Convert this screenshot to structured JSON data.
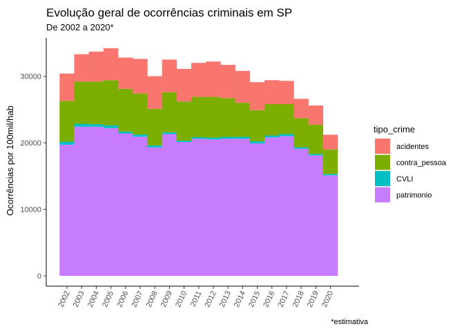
{
  "chart_data": {
    "type": "bar",
    "stacked": true,
    "title": "Evolução geral de ocorrências criminais em SP",
    "subtitle": "De 2002 a 2020*",
    "xlabel": "",
    "ylabel": "Ocorrências por 100mil/hab",
    "caption": "*estimativa",
    "ylim": [
      0,
      35000
    ],
    "yticks": [
      0,
      10000,
      20000,
      30000
    ],
    "ytick_labels": [
      "0",
      "10000",
      "20000",
      "30000"
    ],
    "grid": false,
    "legend": {
      "title": "tipo_crime",
      "position": "right"
    },
    "categories": [
      "2002",
      "2003",
      "2004",
      "2005",
      "2006",
      "2007",
      "2008",
      "2009",
      "2010",
      "2011",
      "2012",
      "2013",
      "2014",
      "2015",
      "2016",
      "2017",
      "2018",
      "2019",
      "2020"
    ],
    "series": [
      {
        "name": "patrimonio",
        "color": "#C77CFF",
        "values": [
          19700,
          22400,
          22400,
          22200,
          21400,
          20900,
          19300,
          21300,
          20100,
          20600,
          20500,
          20600,
          20600,
          19900,
          20800,
          21000,
          19100,
          18100,
          15100
        ]
      },
      {
        "name": "CVLI",
        "color": "#00BFC4",
        "values": [
          450,
          450,
          380,
          420,
          280,
          340,
          300,
          270,
          210,
          230,
          270,
          270,
          290,
          300,
          290,
          300,
          220,
          210,
          210
        ]
      },
      {
        "name": "contra_pessoa",
        "color": "#7CAE00",
        "values": [
          6150,
          6350,
          6420,
          6780,
          6420,
          6160,
          5500,
          6030,
          5890,
          6070,
          6130,
          5830,
          5110,
          4700,
          4710,
          4500,
          4380,
          4390,
          3690
        ]
      },
      {
        "name": "acidentes",
        "color": "#F8766D",
        "values": [
          4100,
          4100,
          4500,
          4800,
          4700,
          5200,
          4900,
          4900,
          4900,
          5100,
          5300,
          5000,
          4800,
          4200,
          3600,
          3500,
          2900,
          2900,
          2200
        ]
      }
    ],
    "legend_order": [
      "acidentes",
      "contra_pessoa",
      "CVLI",
      "patrimonio"
    ]
  }
}
